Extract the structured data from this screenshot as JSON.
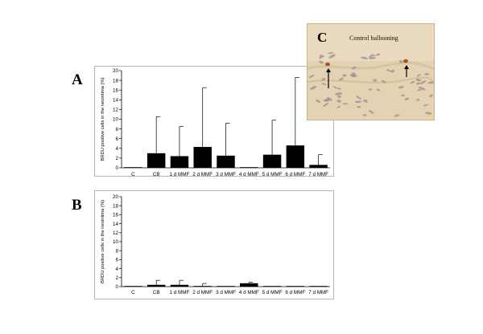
{
  "figure": {
    "panel_a_letter": "A",
    "panel_b_letter": "B",
    "panel_c_letter": "C",
    "photo_caption": "Control ballooning",
    "bar_color": "#000000",
    "photo_bg_color": "#e4d2b3",
    "cell_color": "#9b8f94",
    "nucleus_color": "#a0532e"
  },
  "chart_data": [
    {
      "id": "A",
      "type": "bar",
      "ylabel": "BRDU positive cells in the neointima (%)",
      "xlabel": "",
      "ylim": [
        0,
        20
      ],
      "yticks": [
        0,
        2,
        4,
        6,
        8,
        10,
        12,
        14,
        16,
        18,
        20
      ],
      "categories": [
        "C",
        "CB",
        "1 d MMF",
        "2 d MMF",
        "3 d MMF",
        "4 d MMF",
        "5 d MMF",
        "6 d MMF",
        "7 d MMF"
      ],
      "values": [
        0.1,
        3.0,
        2.4,
        4.3,
        2.5,
        0.1,
        2.7,
        4.6,
        0.6
      ],
      "error_upper": [
        0,
        10.5,
        8.5,
        16.5,
        9.2,
        0,
        9.8,
        18.6,
        2.7
      ],
      "grid": false
    },
    {
      "id": "B",
      "type": "bar",
      "ylabel": "BRDU positive cells in the neointima (%)",
      "xlabel": "",
      "ylim": [
        0,
        20
      ],
      "yticks": [
        0,
        2,
        4,
        6,
        8,
        10,
        12,
        14,
        16,
        18,
        20
      ],
      "categories": [
        "C",
        "CB",
        "1 d MMF",
        "2 d MMF",
        "3 d MMF",
        "4 d MMF",
        "5 d MMF",
        "6 d MMF",
        "7 d MMF"
      ],
      "values": [
        0.05,
        0.4,
        0.4,
        0.15,
        0.05,
        0.75,
        0.05,
        0.05,
        0.05
      ],
      "error_upper": [
        0,
        1.4,
        1.4,
        0.7,
        0,
        1.0,
        0,
        0,
        0
      ],
      "grid": false
    }
  ]
}
